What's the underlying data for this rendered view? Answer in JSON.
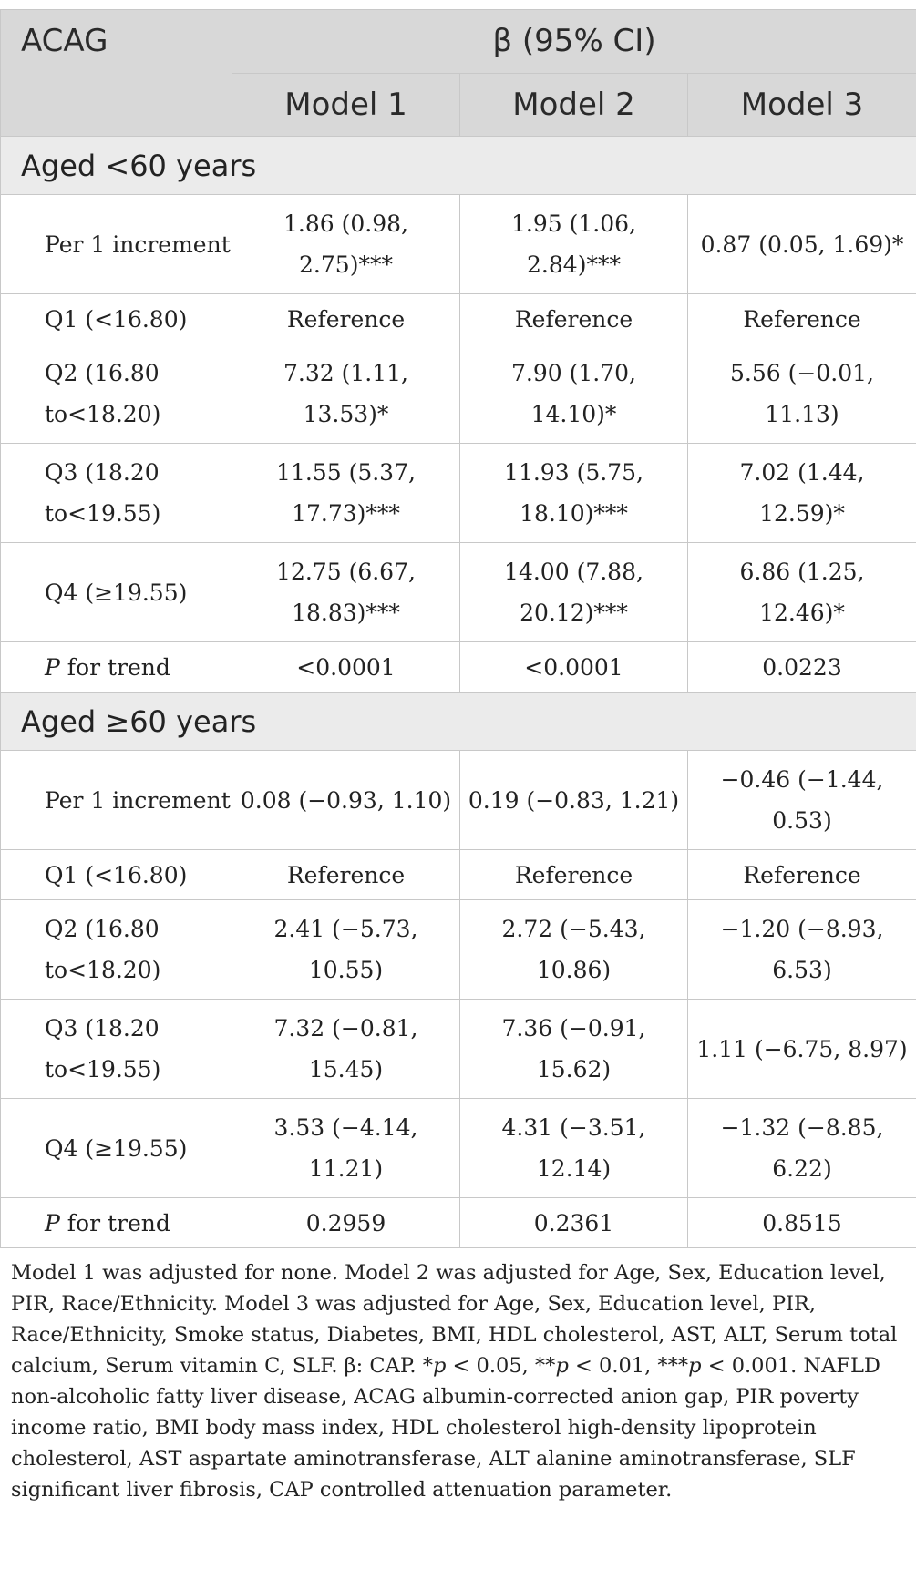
{
  "header": {
    "acag": "ACAG",
    "beta": "β (95% CI)",
    "models": [
      "Model 1",
      "Model 2",
      "Model 3"
    ]
  },
  "sections": [
    {
      "title": "Aged <60 years",
      "rows": [
        {
          "label": "Per 1 increment",
          "values": [
            "1.86 (0.98, 2.75)***",
            "1.95 (1.06, 2.84)***",
            "0.87 (0.05, 1.69)*"
          ]
        },
        {
          "label": "Q1 (<16.80)",
          "values": [
            "Reference",
            "Reference",
            "Reference"
          ]
        },
        {
          "label": "Q2 (16.80 to<18.20)",
          "values": [
            "7.32 (1.11, 13.53)*",
            "7.90 (1.70, 14.10)*",
            "5.56 (−0.01, 11.13)"
          ]
        },
        {
          "label": "Q3 (18.20 to<19.55)",
          "values": [
            "11.55 (5.37, 17.73)***",
            "11.93 (5.75, 18.10)***",
            "7.02 (1.44, 12.59)*"
          ]
        },
        {
          "label": "Q4 (≥19.55)",
          "values": [
            "12.75 (6.67, 18.83)***",
            "14.00 (7.88, 20.12)***",
            "6.86 (1.25, 12.46)*"
          ]
        },
        {
          "label_italic": "P",
          "label_rest": " for trend",
          "values": [
            "<0.0001",
            "<0.0001",
            "0.0223"
          ]
        }
      ]
    },
    {
      "title": "Aged ≥60 years",
      "rows": [
        {
          "label": "Per 1 increment",
          "values": [
            "0.08 (−0.93, 1.10)",
            "0.19 (−0.83, 1.21)",
            "−0.46 (−1.44, 0.53)"
          ]
        },
        {
          "label": "Q1 (<16.80)",
          "values": [
            "Reference",
            "Reference",
            "Reference"
          ]
        },
        {
          "label": "Q2 (16.80 to<18.20)",
          "values": [
            "2.41 (−5.73, 10.55)",
            "2.72 (−5.43, 10.86)",
            "−1.20 (−8.93, 6.53)"
          ]
        },
        {
          "label": "Q3 (18.20 to<19.55)",
          "values": [
            "7.32 (−0.81, 15.45)",
            "7.36 (−0.91, 15.62)",
            "1.11 (−6.75, 8.97)"
          ]
        },
        {
          "label": "Q4 (≥19.55)",
          "values": [
            "3.53 (−4.14, 11.21)",
            "4.31 (−3.51, 12.14)",
            "−1.32 (−8.85, 6.22)"
          ]
        },
        {
          "label_italic": "P",
          "label_rest": " for trend",
          "values": [
            "0.2959",
            "0.2361",
            "0.8515"
          ]
        }
      ]
    }
  ],
  "footnote": {
    "part1": "Model 1 was adjusted for none. Model 2 was adjusted for Age, Sex, Education level, PIR, Race/Ethnicity. Model 3 was adjusted for Age, Sex, Education level, PIR, Race/Ethnicity, Smoke status, Diabetes, BMI, HDL cholesterol, AST, ALT, Serum total calcium, Serum vitamin C, SLF. β: CAP. *",
    "p1": "p",
    "part2": " < 0.05, **",
    "p2": "p",
    "part3": " < 0.01, ***",
    "p3": "p",
    "part4": " < 0.001. NAFLD non-alcoholic fatty liver disease, ACAG albumin-corrected anion gap, PIR poverty income ratio, BMI body mass index, HDL cholesterol high-density lipoprotein cholesterol, AST aspartate aminotransferase, ALT alanine aminotransferase, SLF significant liver fibrosis, CAP controlled attenuation parameter."
  }
}
